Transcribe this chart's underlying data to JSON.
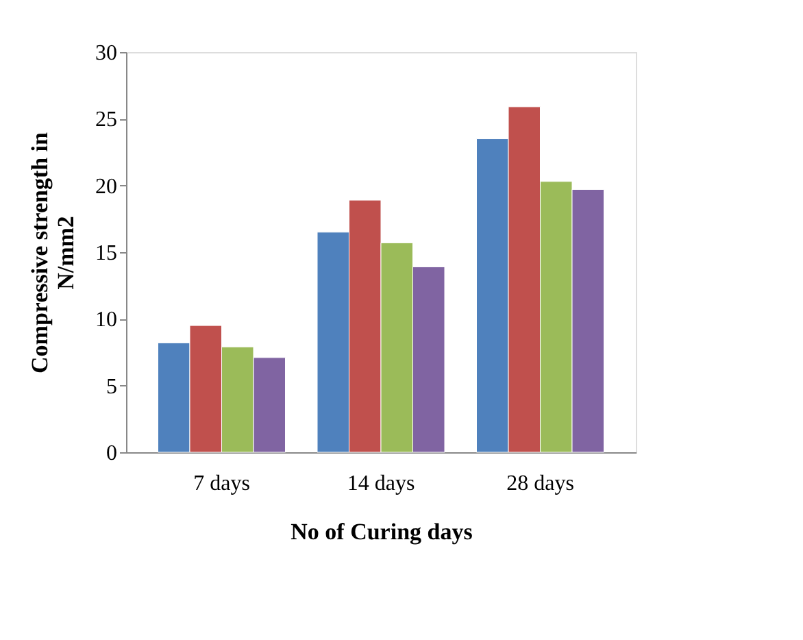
{
  "chart_data": {
    "type": "bar",
    "xlabel": "No of Curing days",
    "ylabel": "Compressive strength in N/mm2",
    "categories": [
      "7 days",
      "14 days",
      "28 days"
    ],
    "series": [
      {
        "color": "#4f81bd",
        "values": [
          8.2,
          16.5,
          23.5
        ]
      },
      {
        "color": "#c0504d",
        "values": [
          9.5,
          18.9,
          25.9
        ]
      },
      {
        "color": "#9bbb59",
        "values": [
          7.9,
          15.7,
          20.3
        ]
      },
      {
        "color": "#8064a2",
        "values": [
          7.1,
          13.9,
          19.7
        ]
      }
    ],
    "ylim": [
      0,
      30
    ],
    "yticks": [
      0,
      5,
      10,
      15,
      20,
      25,
      30
    ],
    "grid": false,
    "legend": false
  }
}
